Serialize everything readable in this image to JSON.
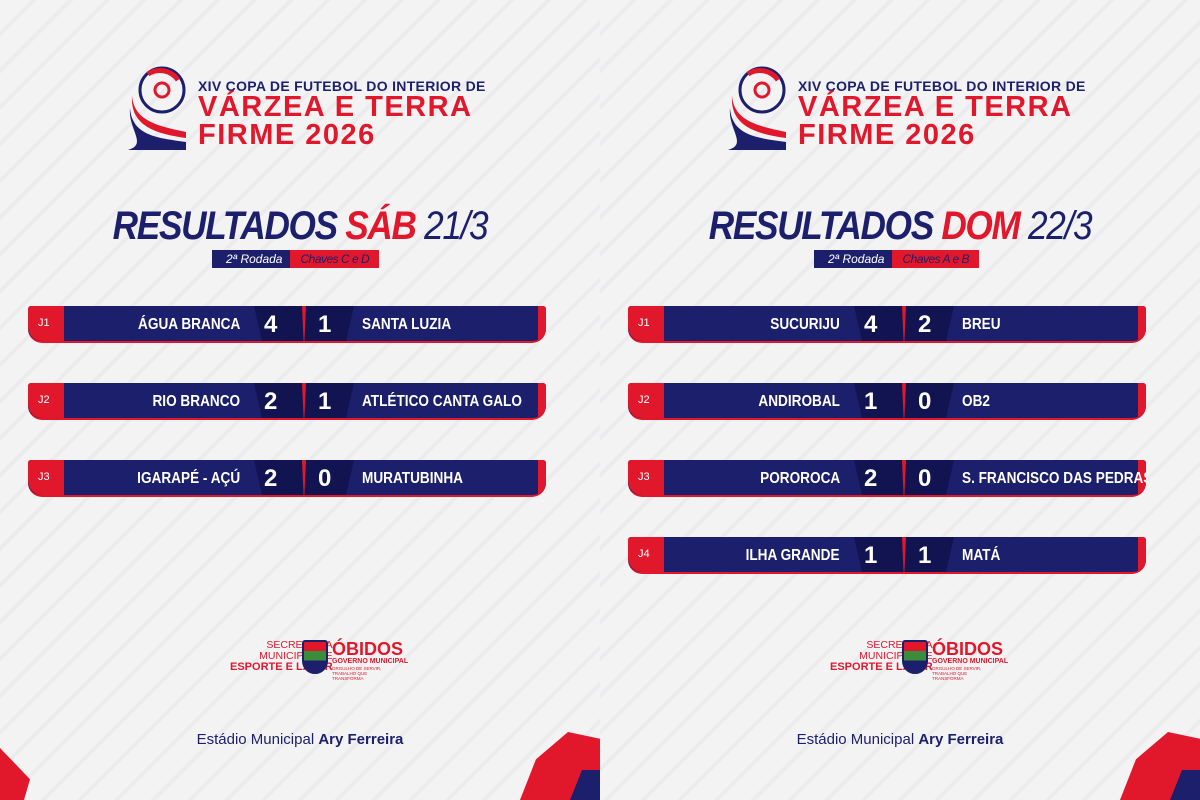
{
  "colors": {
    "navy": "#1c1f6b",
    "red": "#e1182c",
    "background": "#f2f2f3"
  },
  "panels": [
    {
      "logo": {
        "top": "XIV COPA DE FUTEBOL DO INTERIOR DE",
        "line1": "VÁRZEA E TERRA",
        "line2": "FIRME 2026"
      },
      "title": {
        "word": "RESULTADOS",
        "day": "SÁB",
        "date": "21/3"
      },
      "round": "2ª Rodada",
      "groups": "Chaves C e D",
      "matches": [
        {
          "game": "J1",
          "home": "ÁGUA BRANCA",
          "home_score": "4",
          "away_score": "1",
          "away": "SANTA LUZIA"
        },
        {
          "game": "J2",
          "home": "RIO BRANCO",
          "home_score": "2",
          "away_score": "1",
          "away": "ATLÉTICO CANTA GALO"
        },
        {
          "game": "J3",
          "home": "IGARAPÉ - AÇÚ",
          "home_score": "2",
          "away_score": "0",
          "away": "MURATUBINHA"
        }
      ],
      "sponsor": {
        "sec1": "SECRETARIA",
        "sec2": "MUNICIPAL DE",
        "sec3": "ESPORTE E LAZER",
        "city": "ÓBIDOS",
        "gov": "GOVERNO MUNICIPAL",
        "tagline": "ORGULHO DE SERVIR, TRABALHO QUE TRANSFORMA"
      },
      "venue": {
        "prefix": "Estádio Municipal",
        "name": "Ary Ferreira"
      }
    },
    {
      "logo": {
        "top": "XIV COPA DE FUTEBOL DO INTERIOR DE",
        "line1": "VÁRZEA E TERRA",
        "line2": "FIRME 2026"
      },
      "title": {
        "word": "RESULTADOS",
        "day": "DOM",
        "date": "22/3"
      },
      "round": "2ª Rodada",
      "groups": "Chaves A e B",
      "matches": [
        {
          "game": "J1",
          "home": "SUCURIJU",
          "home_score": "4",
          "away_score": "2",
          "away": "BREU"
        },
        {
          "game": "J2",
          "home": "ANDIROBAL",
          "home_score": "1",
          "away_score": "0",
          "away": "OB2"
        },
        {
          "game": "J3",
          "home": "POROROCA",
          "home_score": "2",
          "away_score": "0",
          "away": "S. FRANCISCO DAS PEDRAS"
        },
        {
          "game": "J4",
          "home": "ILHA GRANDE",
          "home_score": "1",
          "away_score": "1",
          "away": "MATÁ"
        }
      ],
      "sponsor": {
        "sec1": "SECRETARIA",
        "sec2": "MUNICIPAL DE",
        "sec3": "ESPORTE E LAZER",
        "city": "ÓBIDOS",
        "gov": "GOVERNO MUNICIPAL",
        "tagline": "ORGULHO DE SERVIR, TRABALHO QUE TRANSFORMA"
      },
      "venue": {
        "prefix": "Estádio Municipal",
        "name": "Ary Ferreira"
      }
    }
  ]
}
